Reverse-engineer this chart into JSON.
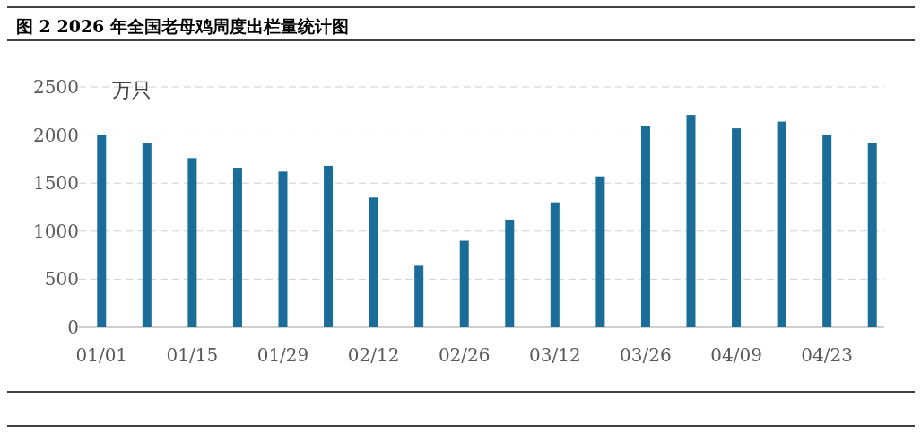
{
  "chart_data": {
    "type": "bar",
    "title": "图 2 2026 年全国老母鸡周度出栏量统计图",
    "ylabel": "万只",
    "categories": [
      "01/01",
      null,
      "01/15",
      null,
      "01/29",
      null,
      "02/12",
      null,
      "02/26",
      null,
      "03/12",
      null,
      "03/26",
      null,
      "04/09",
      null,
      "04/23",
      null
    ],
    "values": [
      2000,
      1920,
      1760,
      1660,
      1620,
      1680,
      1350,
      640,
      900,
      1120,
      1300,
      1570,
      2090,
      2210,
      2070,
      2140,
      2000,
      1920
    ],
    "color": "#1a6d99",
    "ylim": [
      0,
      2500
    ],
    "yticks": [
      0,
      500,
      1000,
      1500,
      2000,
      2500
    ],
    "grid": "y"
  }
}
